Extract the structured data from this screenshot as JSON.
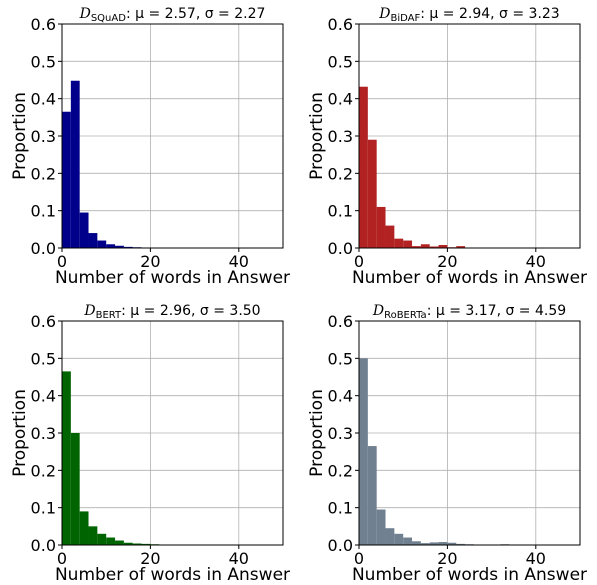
{
  "chart_data": [
    {
      "type": "bar",
      "title": {
        "symbol": "D",
        "subscript": "SQuAD",
        "stats": ":  μ = 2.57,  σ = 2.27"
      },
      "xlabel": "Number of words in Answer",
      "ylabel": "Proportion",
      "xlim": [
        0,
        50
      ],
      "ylim": [
        0,
        0.6
      ],
      "xticks": [
        "0",
        "20",
        "40"
      ],
      "yticks": [
        "0.0",
        "0.1",
        "0.2",
        "0.3",
        "0.4",
        "0.5",
        "0.6"
      ],
      "grid": true,
      "color": "#00008b",
      "bin_width": 2,
      "bin_start": 0,
      "values": [
        0.365,
        0.448,
        0.095,
        0.04,
        0.02,
        0.01,
        0.006,
        0.003,
        0.002,
        0.001,
        0,
        0,
        0,
        0,
        0,
        0,
        0,
        0,
        0,
        0,
        0,
        0,
        0,
        0,
        0
      ]
    },
    {
      "type": "bar",
      "title": {
        "symbol": "D",
        "subscript": "BiDAF",
        "stats": ":  μ = 2.94,  σ = 3.23"
      },
      "xlabel": "Number of words in Answer",
      "ylabel": "Proportion",
      "xlim": [
        0,
        50
      ],
      "ylim": [
        0,
        0.6
      ],
      "xticks": [
        "0",
        "20",
        "40"
      ],
      "yticks": [
        "0.0",
        "0.1",
        "0.2",
        "0.3",
        "0.4",
        "0.5",
        "0.6"
      ],
      "grid": true,
      "color": "#b22222",
      "bin_width": 2,
      "bin_start": 0,
      "values": [
        0.432,
        0.29,
        0.11,
        0.06,
        0.025,
        0.02,
        0.005,
        0.01,
        0.004,
        0.008,
        0.002,
        0.005,
        0.001,
        0,
        0,
        0,
        0,
        0,
        0,
        0,
        0,
        0,
        0,
        0,
        0
      ]
    },
    {
      "type": "bar",
      "title": {
        "symbol": "D",
        "subscript": "BERT",
        "stats": ":  μ = 2.96,  σ = 3.50"
      },
      "xlabel": "Number of words in Answer",
      "ylabel": "Proportion",
      "xlim": [
        0,
        50
      ],
      "ylim": [
        0,
        0.6
      ],
      "xticks": [
        "0",
        "20",
        "40"
      ],
      "yticks": [
        "0.0",
        "0.1",
        "0.2",
        "0.3",
        "0.4",
        "0.5",
        "0.6"
      ],
      "grid": true,
      "color": "#006400",
      "bin_width": 2,
      "bin_start": 0,
      "values": [
        0.465,
        0.3,
        0.09,
        0.05,
        0.03,
        0.02,
        0.012,
        0.006,
        0.004,
        0.003,
        0.002,
        0.001,
        0.001,
        0,
        0,
        0,
        0.001,
        0,
        0,
        0,
        0,
        0,
        0,
        0,
        0
      ]
    },
    {
      "type": "bar",
      "title": {
        "symbol": "D",
        "subscript": "RoBERTa",
        "stats": ":  μ = 3.17,  σ = 4.59"
      },
      "xlabel": "Number of words in Answer",
      "ylabel": "Proportion",
      "xlim": [
        0,
        50
      ],
      "ylim": [
        0,
        0.6
      ],
      "xticks": [
        "0",
        "20",
        "40"
      ],
      "yticks": [
        "0.0",
        "0.1",
        "0.2",
        "0.3",
        "0.4",
        "0.5",
        "0.6"
      ],
      "grid": true,
      "color": "#708090",
      "bin_width": 2,
      "bin_start": 0,
      "values": [
        0.5,
        0.265,
        0.095,
        0.045,
        0.03,
        0.02,
        0.01,
        0.005,
        0.007,
        0.008,
        0.006,
        0.003,
        0.002,
        0.001,
        0.001,
        0.001,
        0.002,
        0.001,
        0.001,
        0.001,
        0.001,
        0.001,
        0.001,
        0.001,
        0.001
      ]
    }
  ]
}
